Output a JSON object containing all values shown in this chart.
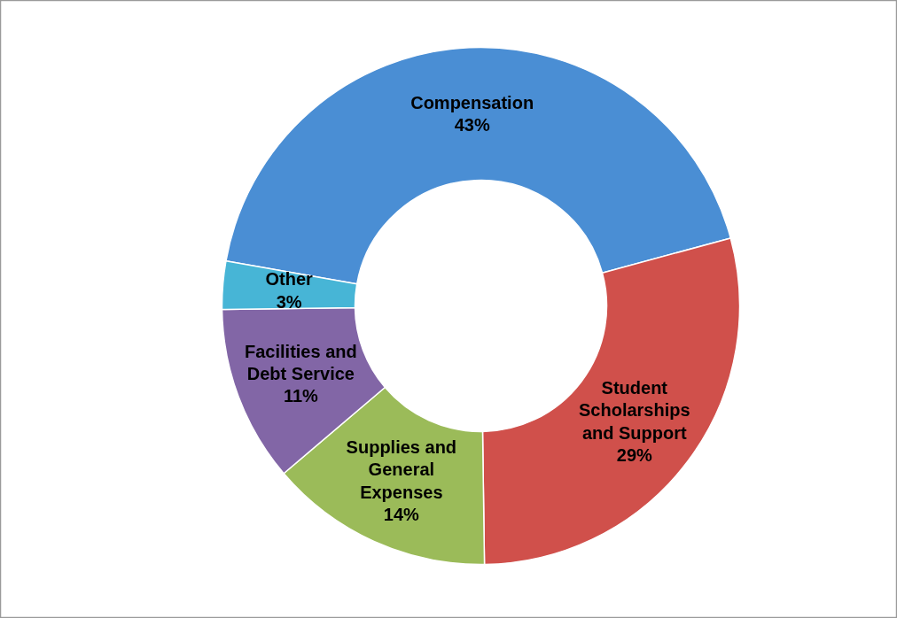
{
  "chart_data": {
    "type": "donut",
    "categories": [
      "Compensation",
      "Student Scholarships and Support",
      "Supplies and General Expenses",
      "Facilities and Debt Service",
      "Other"
    ],
    "values": [
      43,
      29,
      14,
      11,
      3
    ],
    "value_labels": [
      "43%",
      "29%",
      "14%",
      "11%",
      "3%"
    ],
    "colors": [
      "#4a8ed4",
      "#d0504b",
      "#9bbb59",
      "#8266a6",
      "#47b5d6"
    ]
  }
}
